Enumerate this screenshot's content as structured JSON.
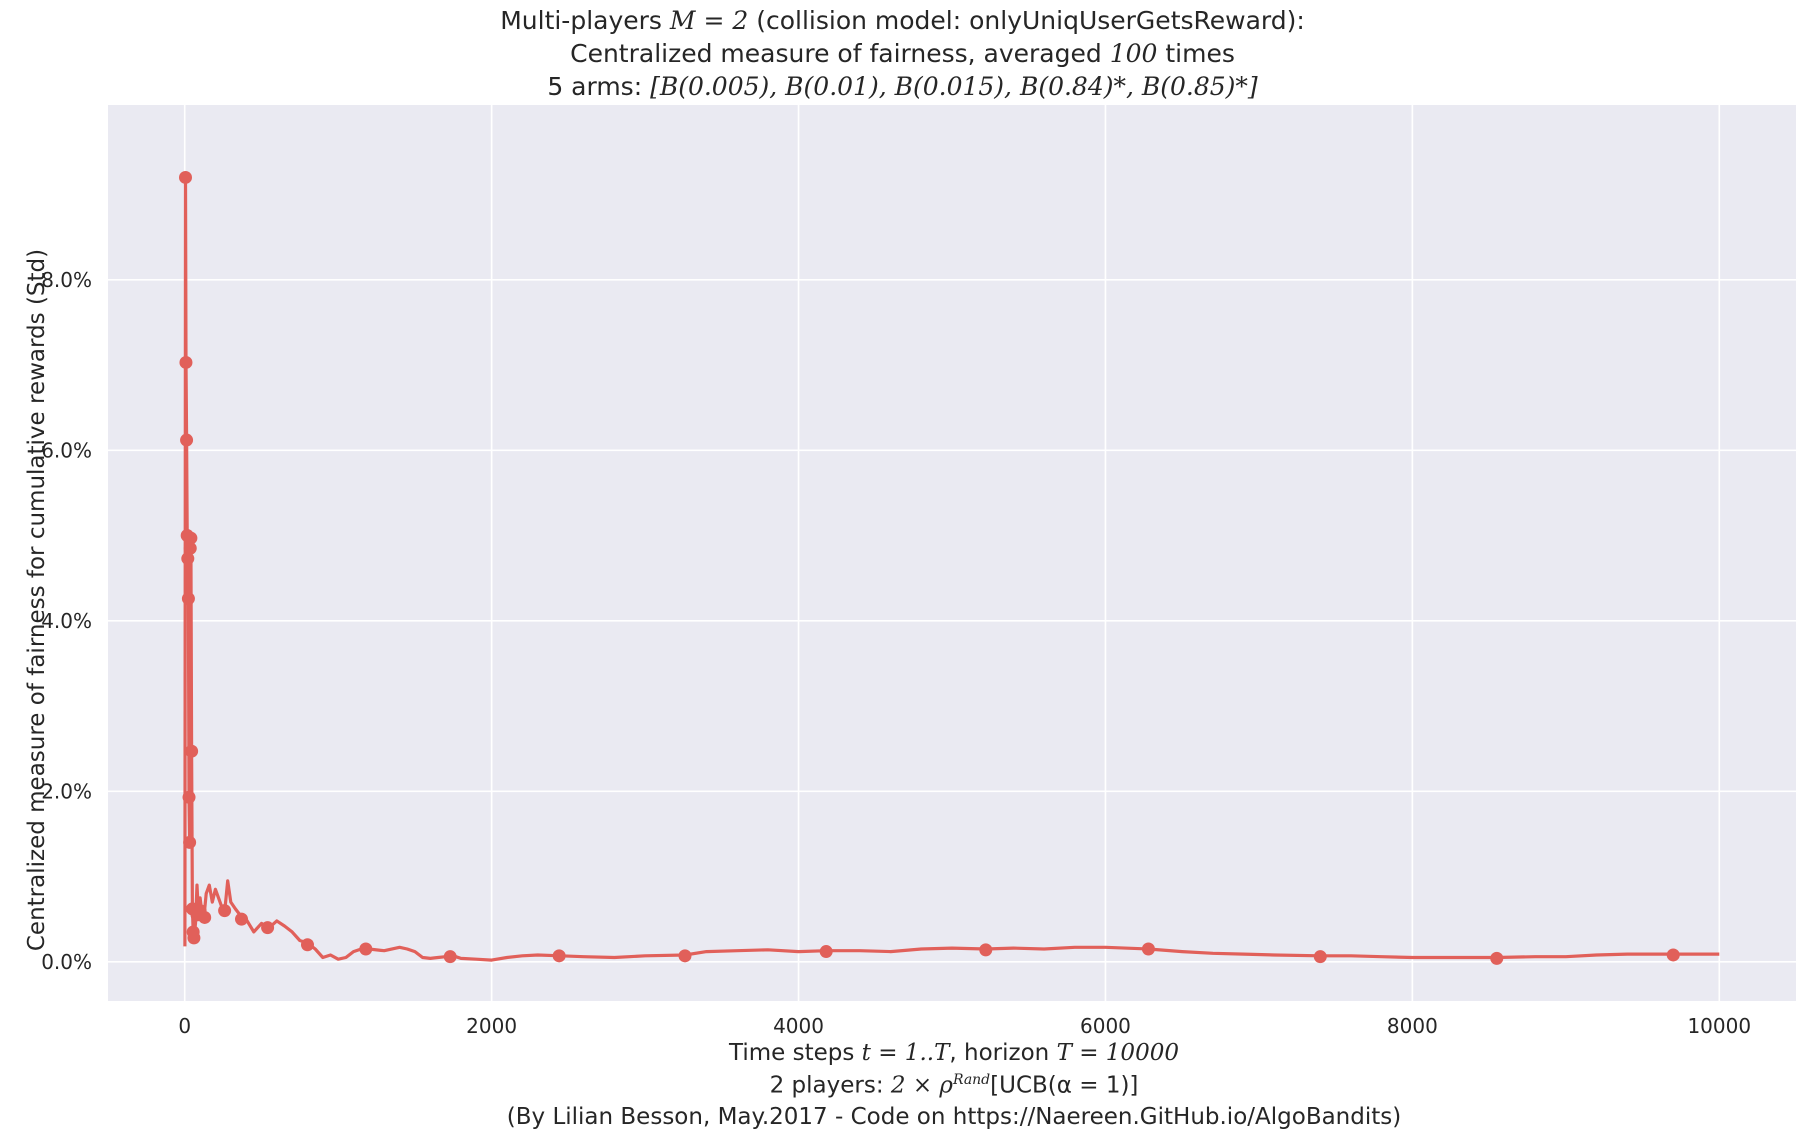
{
  "chart_data": {
    "type": "line",
    "title_lines": [
      {
        "pre": "Multi-players ",
        "math": "M = 2",
        "post": " (collision model: onlyUniqUserGetsReward):"
      },
      {
        "pre": "Centralized measure of fairness, averaged ",
        "math": "100",
        "post": " times"
      },
      {
        "pre": "5 arms: ",
        "math": "[B(0.005), B(0.01), B(0.015), B(0.84)*, B(0.85)*]",
        "post": ""
      }
    ],
    "xlabel_lines": [
      {
        "pre": "Time steps ",
        "math": "t = 1..T",
        "post": ", horizon ",
        "math2": "T = 10000",
        "post2": ""
      },
      {
        "pre": "2 players: ",
        "math": "2 × ρ",
        "sup": "Rand",
        "post": "[UCB(α = 1)]"
      },
      {
        "pre": "(By Lilian Besson, May.2017 - Code on https://Naereen.GitHub.io/AlgoBandits)",
        "math": "",
        "post": ""
      }
    ],
    "ylabel": "Centralized measure of fairness for cumulative rewards (Std)",
    "xlim": [
      -500,
      10500
    ],
    "ylim": [
      -0.0046,
      0.1005
    ],
    "xticks": [
      0,
      2000,
      4000,
      6000,
      8000,
      10000
    ],
    "xtick_labels": [
      "0",
      "2000",
      "4000",
      "6000",
      "8000",
      "10000"
    ],
    "yticks": [
      0.0,
      0.02,
      0.04,
      0.06,
      0.08
    ],
    "ytick_labels": [
      "0.0%",
      "2.0%",
      "4.0%",
      "6.0%",
      "8.0%"
    ],
    "grid": true,
    "colors": {
      "line": "#e1605a",
      "background": "#eaeaf2",
      "grid": "#ffffff"
    },
    "series": [
      {
        "x": [
          1,
          5,
          8,
          12,
          16,
          20,
          24,
          28,
          32,
          36,
          40,
          45,
          50,
          55,
          60,
          70,
          80,
          90,
          100,
          110,
          125,
          140,
          160,
          180,
          200,
          220,
          240,
          260,
          280,
          300,
          330,
          360,
          400,
          450,
          500,
          550,
          600,
          650,
          700,
          750,
          800,
          850,
          900,
          950,
          1000,
          1050,
          1100,
          1150,
          1200,
          1300,
          1400,
          1450,
          1500,
          1550,
          1600,
          1650,
          1700,
          1750,
          1800,
          1900,
          2000,
          2100,
          2200,
          2300,
          2450,
          2600,
          2800,
          3000,
          3260,
          3400,
          3600,
          3800,
          4000,
          4180,
          4400,
          4600,
          4800,
          5000,
          5220,
          5400,
          5600,
          5800,
          6000,
          6280,
          6500,
          6700,
          6900,
          7100,
          7400,
          7600,
          7800,
          8000,
          8200,
          8400,
          8550,
          8800,
          9000,
          9200,
          9400,
          9700,
          10000
        ],
        "y": [
          0.0018,
          0.092,
          0.0703,
          0.0612,
          0.05,
          0.0473,
          0.0426,
          0.0193,
          0.014,
          0.0485,
          0.0497,
          0.0247,
          0.0062,
          0.0035,
          0.0028,
          0.0045,
          0.009,
          0.0055,
          0.0075,
          0.006,
          0.0052,
          0.008,
          0.009,
          0.007,
          0.0085,
          0.0075,
          0.0065,
          0.0058,
          0.0095,
          0.007,
          0.0062,
          0.0055,
          0.005,
          0.0035,
          0.0045,
          0.004,
          0.0048,
          0.0042,
          0.0035,
          0.0025,
          0.0022,
          0.0015,
          0.0005,
          0.0008,
          0.0003,
          0.0005,
          0.0012,
          0.0015,
          0.0015,
          0.0013,
          0.0017,
          0.0015,
          0.0012,
          0.0005,
          0.0004,
          0.0005,
          0.0006,
          0.0007,
          0.0004,
          0.0003,
          0.0002,
          0.0005,
          0.0007,
          0.0008,
          0.0007,
          0.0006,
          0.0005,
          0.0007,
          0.0008,
          0.0012,
          0.0013,
          0.0014,
          0.0012,
          0.0013,
          0.0013,
          0.0012,
          0.0015,
          0.0016,
          0.0015,
          0.0016,
          0.0015,
          0.0017,
          0.0017,
          0.0015,
          0.0012,
          0.001,
          0.0009,
          0.0008,
          0.0007,
          0.0007,
          0.0006,
          0.0005,
          0.0005,
          0.0005,
          0.0005,
          0.0006,
          0.0006,
          0.0008,
          0.0009,
          0.0009,
          0.0009
        ]
      }
    ],
    "markers": {
      "x": [
        5,
        8,
        12,
        16,
        20,
        24,
        28,
        32,
        36,
        40,
        45,
        50,
        55,
        60,
        80,
        100,
        130,
        260,
        370,
        540,
        800,
        1180,
        1730,
        2440,
        3260,
        4180,
        5220,
        6280,
        7400,
        8550,
        9700
      ],
      "y": [
        0.092,
        0.0703,
        0.0612,
        0.05,
        0.0473,
        0.0426,
        0.0193,
        0.014,
        0.0485,
        0.0497,
        0.0247,
        0.0062,
        0.0035,
        0.0028,
        0.0055,
        0.006,
        0.0052,
        0.006,
        0.005,
        0.004,
        0.002,
        0.0015,
        0.0006,
        0.0007,
        0.0007,
        0.0012,
        0.0014,
        0.0015,
        0.0006,
        0.0004,
        0.0008
      ]
    }
  }
}
